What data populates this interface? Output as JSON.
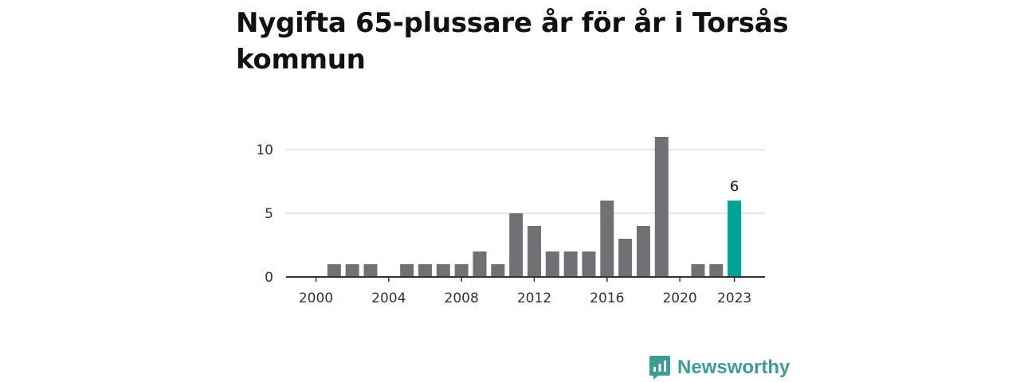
{
  "title": "Nygifta 65-plussare år för år i Torsås kommun",
  "brand": {
    "name": "Newsworthy",
    "color": "#3d9d96"
  },
  "colors": {
    "bar": "#717075",
    "highlight": "#00a398",
    "grid": "#dddddd",
    "axis": "#333333"
  },
  "chart_data": {
    "type": "bar",
    "title": "Nygifta 65-plussare år för år i Torsås kommun",
    "xlabel": "",
    "ylabel": "",
    "categories": [
      2000,
      2001,
      2002,
      2003,
      2004,
      2005,
      2006,
      2007,
      2008,
      2009,
      2010,
      2011,
      2012,
      2013,
      2014,
      2015,
      2016,
      2017,
      2018,
      2019,
      2020,
      2021,
      2022,
      2023
    ],
    "values": [
      0,
      1,
      1,
      1,
      0,
      1,
      1,
      1,
      1,
      2,
      1,
      5,
      4,
      2,
      2,
      2,
      6,
      3,
      4,
      11,
      0,
      1,
      1,
      6
    ],
    "ylim": [
      0,
      12
    ],
    "yticks": [
      0,
      5,
      10
    ],
    "xticks": [
      2000,
      2004,
      2008,
      2012,
      2016,
      2020,
      2023
    ],
    "highlight": {
      "category": 2023,
      "label": "6"
    },
    "grid": true
  }
}
